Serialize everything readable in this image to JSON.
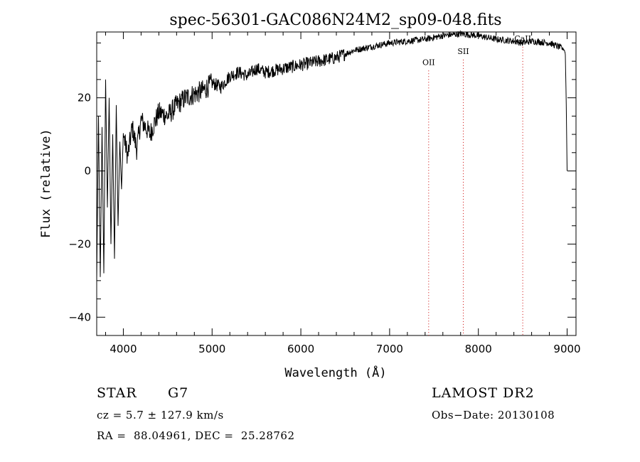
{
  "chart_data": {
    "type": "line",
    "title": "spec-56301-GAC086N24M2_sp09-048.fits",
    "xlabel": "Wavelength (Å)",
    "ylabel": "Flux (relative)",
    "xlim": [
      3700,
      9100
    ],
    "ylim": [
      -45,
      38
    ],
    "x_ticks": [
      4000,
      5000,
      6000,
      7000,
      8000,
      9000
    ],
    "y_ticks": [
      -40,
      -20,
      0,
      20
    ],
    "x_tick_labels": [
      "4000",
      "5000",
      "6000",
      "7000",
      "8000",
      "9000"
    ],
    "y_tick_labels": [
      "−40",
      "−20",
      "0",
      "20"
    ],
    "grid": false,
    "line_color": "#000000",
    "marker_color": "#cc0000",
    "series": [
      {
        "x": [
          3700,
          3720,
          3740,
          3760,
          3780,
          3800,
          3820,
          3840,
          3860,
          3880,
          3900,
          3920,
          3940,
          3960,
          3980,
          4000,
          4050,
          4100,
          4150,
          4200,
          4300,
          4400,
          4500,
          4600,
          4700,
          4800,
          4900,
          5000,
          5100,
          5200,
          5300,
          5400,
          5500,
          5600,
          5800,
          6000,
          6200,
          6400,
          6600,
          6800,
          7000,
          7200,
          7400,
          7600,
          7800,
          8000,
          8200,
          8400,
          8500,
          8600,
          8800,
          8900,
          8950,
          8970,
          8980,
          8990,
          9000
        ],
        "y": [
          -30,
          15,
          -29,
          12,
          -28,
          25,
          -10,
          20,
          -20,
          10,
          -24,
          18,
          -15,
          8,
          -5,
          10,
          4,
          12,
          6,
          14,
          10,
          16,
          15,
          18,
          20,
          21,
          22,
          24,
          23,
          26,
          27,
          26,
          28,
          27,
          28,
          29,
          30,
          31,
          33,
          34,
          35,
          35.5,
          36,
          37,
          37.5,
          37,
          36,
          35.5,
          35,
          35.5,
          35,
          34,
          33.5,
          33,
          32,
          18,
          0
        ]
      }
    ],
    "line_markers": [
      {
        "label": "OII",
        "x": 7440,
        "label_y": 29
      },
      {
        "label": "SII",
        "x": 7830,
        "label_y": 32
      },
      {
        "label": "CaII",
        "x": 8500,
        "label_y": 35.5
      }
    ]
  },
  "info": {
    "object_class": "STAR",
    "subclass": "G7",
    "survey": "LAMOST DR2",
    "redshift": "cz = 5.7 ± 127.9 km/s",
    "obs_date": "Obs−Date: 20130108",
    "coords": "RA =  88.04961, DEC =  25.28762"
  }
}
